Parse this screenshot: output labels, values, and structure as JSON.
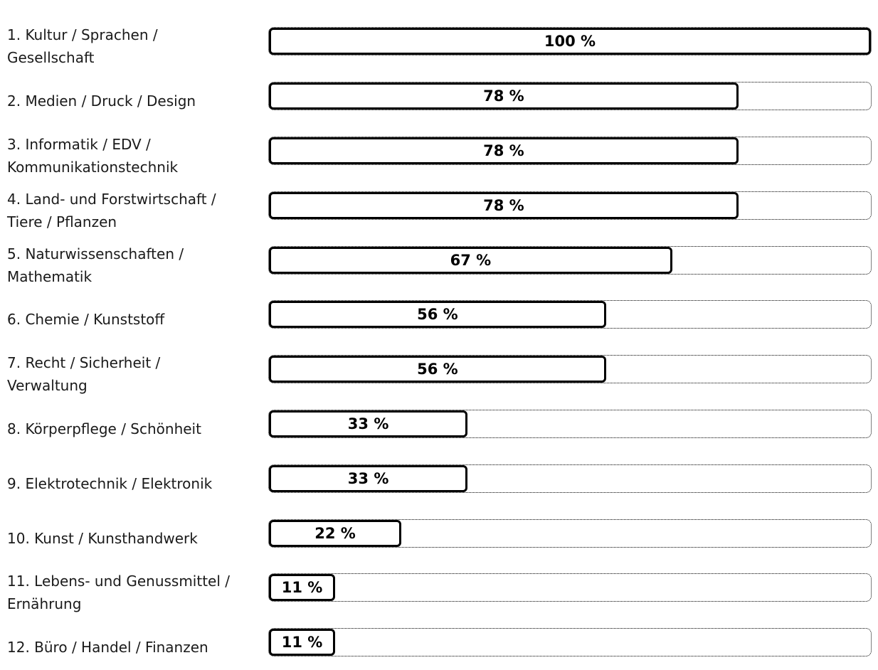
{
  "chart_data": {
    "type": "bar",
    "orientation": "horizontal",
    "title": "",
    "xlabel": "",
    "ylabel": "",
    "xlim": [
      0,
      100
    ],
    "grid": false,
    "legend": false,
    "value_suffix": " %",
    "categories": [
      "1. Kultur / Sprachen / Gesellschaft",
      "2. Medien / Druck / Design",
      "3. Informatik / EDV / Kommunikationstechnik",
      "4. Land- und Forstwirtschaft / Tiere / Pflanzen",
      "5. Naturwissenschaften / Mathematik",
      "6. Chemie / Kunststoff",
      "7. Recht / Sicherheit / Verwaltung",
      "8. Körperpflege / Schönheit",
      "9. Elektrotechnik / Elektronik",
      "10. Kunst / Kunsthandwerk",
      "11. Lebens- und Genussmittel / Ernährung",
      "12. Büro / Handel / Finanzen"
    ],
    "values": [
      100,
      78,
      78,
      78,
      67,
      56,
      56,
      33,
      33,
      22,
      11,
      11
    ],
    "colors": {
      "bar_fill": "#ffffff",
      "bar_border": "#000000",
      "track_border": "#000000",
      "label_text": "#1a1a1a",
      "value_text": "#000000",
      "background": "#ffffff"
    }
  },
  "rows": [
    {
      "label": "1. Kultur / Sprachen / Gesellschaft",
      "value": 100,
      "value_label": "100 %"
    },
    {
      "label": "2. Medien / Druck / Design",
      "value": 78,
      "value_label": "78 %"
    },
    {
      "label": "3. Informatik / EDV / Kommunikationstechnik",
      "value": 78,
      "value_label": "78 %"
    },
    {
      "label": "4. Land- und Forstwirtschaft / Tiere / Pflanzen",
      "value": 78,
      "value_label": "78 %"
    },
    {
      "label": "5. Naturwissenschaften / Mathematik",
      "value": 67,
      "value_label": "67 %"
    },
    {
      "label": "6. Chemie / Kunststoff",
      "value": 56,
      "value_label": "56 %"
    },
    {
      "label": "7. Recht / Sicherheit / Verwaltung",
      "value": 56,
      "value_label": "56 %"
    },
    {
      "label": "8. Körperpflege / Schönheit",
      "value": 33,
      "value_label": "33 %"
    },
    {
      "label": "9. Elektrotechnik / Elektronik",
      "value": 33,
      "value_label": "33 %"
    },
    {
      "label": "10. Kunst / Kunsthandwerk",
      "value": 22,
      "value_label": "22 %"
    },
    {
      "label": "11. Lebens- und Genussmittel / Ernährung",
      "value": 11,
      "value_label": "11 %"
    },
    {
      "label": "12. Büro / Handel / Finanzen",
      "value": 11,
      "value_label": "11 %"
    }
  ]
}
